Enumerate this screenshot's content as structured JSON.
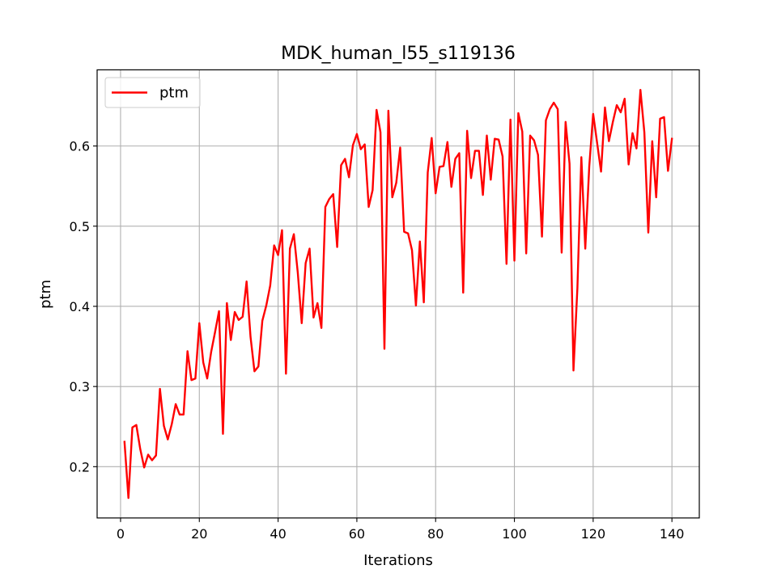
{
  "chart_data": {
    "type": "line",
    "title": "MDK_human_l55_s119136",
    "xlabel": "Iterations",
    "ylabel": "ptm",
    "xlim": [
      -5.95,
      146.95
    ],
    "ylim": [
      0.136,
      0.695
    ],
    "xticks": [
      0,
      20,
      40,
      60,
      80,
      100,
      120,
      140
    ],
    "xtick_labels": [
      "0",
      "20",
      "40",
      "60",
      "80",
      "100",
      "120",
      "140"
    ],
    "yticks": [
      0.2,
      0.3,
      0.4,
      0.5,
      0.6
    ],
    "ytick_labels": [
      "0.2",
      "0.3",
      "0.4",
      "0.5",
      "0.6"
    ],
    "grid": true,
    "legend_position": "upper-left",
    "series": [
      {
        "name": "ptm",
        "color": "#ff0000",
        "x": [
          1,
          2,
          3,
          4,
          5,
          6,
          7,
          8,
          9,
          10,
          11,
          12,
          13,
          14,
          15,
          16,
          17,
          18,
          19,
          20,
          21,
          22,
          23,
          24,
          25,
          26,
          27,
          28,
          29,
          30,
          31,
          32,
          33,
          34,
          35,
          36,
          37,
          38,
          39,
          40,
          41,
          42,
          43,
          44,
          45,
          46,
          47,
          48,
          49,
          50,
          51,
          52,
          53,
          54,
          55,
          56,
          57,
          58,
          59,
          60,
          61,
          62,
          63,
          64,
          65,
          66,
          67,
          68,
          69,
          70,
          71,
          72,
          73,
          74,
          75,
          76,
          77,
          78,
          79,
          80,
          81,
          82,
          83,
          84,
          85,
          86,
          87,
          88,
          89,
          90,
          91,
          92,
          93,
          94,
          95,
          96,
          97,
          98,
          99,
          100,
          101,
          102,
          103,
          104,
          105,
          106,
          107,
          108,
          109,
          110,
          111,
          112,
          113,
          114,
          115,
          116,
          117,
          118,
          119,
          120,
          121,
          122,
          123,
          124,
          125,
          126,
          127,
          128,
          129,
          130,
          131,
          132,
          133,
          134,
          135,
          136,
          137,
          138,
          139,
          140
        ],
        "values": [
          0.231,
          0.161,
          0.249,
          0.252,
          0.222,
          0.199,
          0.215,
          0.208,
          0.214,
          0.297,
          0.251,
          0.234,
          0.253,
          0.278,
          0.265,
          0.265,
          0.344,
          0.308,
          0.31,
          0.379,
          0.33,
          0.31,
          0.343,
          0.368,
          0.394,
          0.241,
          0.404,
          0.358,
          0.393,
          0.383,
          0.387,
          0.431,
          0.362,
          0.319,
          0.325,
          0.382,
          0.401,
          0.426,
          0.476,
          0.464,
          0.495,
          0.316,
          0.472,
          0.49,
          0.442,
          0.379,
          0.454,
          0.472,
          0.386,
          0.404,
          0.373,
          0.524,
          0.534,
          0.54,
          0.474,
          0.576,
          0.584,
          0.561,
          0.601,
          0.615,
          0.596,
          0.602,
          0.524,
          0.545,
          0.645,
          0.617,
          0.347,
          0.644,
          0.536,
          0.554,
          0.598,
          0.493,
          0.491,
          0.47,
          0.401,
          0.481,
          0.405,
          0.567,
          0.61,
          0.541,
          0.574,
          0.575,
          0.605,
          0.549,
          0.584,
          0.591,
          0.417,
          0.619,
          0.56,
          0.594,
          0.594,
          0.539,
          0.613,
          0.558,
          0.609,
          0.608,
          0.587,
          0.453,
          0.633,
          0.457,
          0.641,
          0.618,
          0.466,
          0.613,
          0.607,
          0.589,
          0.487,
          0.632,
          0.646,
          0.654,
          0.646,
          0.467,
          0.63,
          0.578,
          0.32,
          0.423,
          0.586,
          0.472,
          0.574,
          0.64,
          0.604,
          0.568,
          0.648,
          0.606,
          0.63,
          0.651,
          0.642,
          0.659,
          0.577,
          0.616,
          0.597,
          0.67,
          0.617,
          0.492,
          0.606,
          0.536,
          0.634,
          0.636,
          0.569,
          0.609
        ]
      }
    ]
  }
}
